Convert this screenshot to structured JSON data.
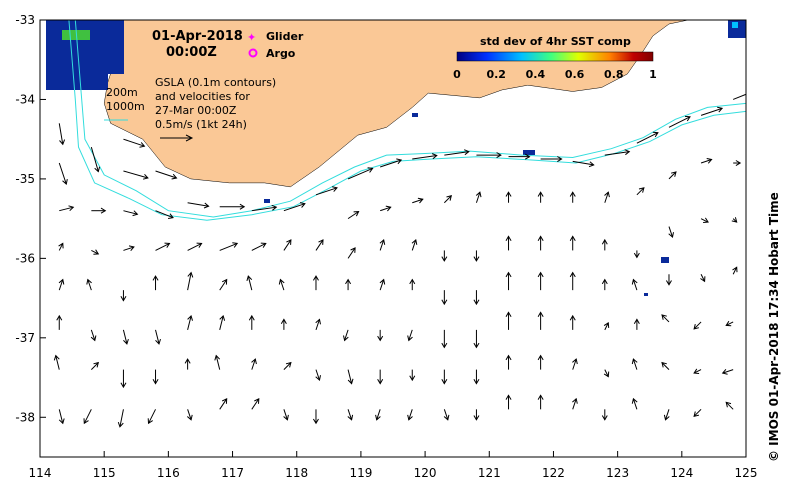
{
  "date_line": "01-Apr-2018",
  "time_line": "00:00Z",
  "legend": {
    "glider_label": "Glider",
    "argo_label": "Argo",
    "glider_color": "#ff00ff",
    "argo_color": "#ff00ff"
  },
  "gsla": {
    "line1": "GSLA (0.1m contours)",
    "line2": "and velocities for",
    "line3": "27-Mar 00:00Z",
    "scale_label": "0.5m/s (1kt 24h)"
  },
  "isobaths": {
    "label_200": "200m",
    "label_1000": "1000m",
    "color": "#33dddd"
  },
  "colorbar": {
    "title": "std dev of 4hr SST comp",
    "ticks": [
      "0",
      "0.2",
      "0.4",
      "0.6",
      "0.8",
      "1"
    ],
    "range": [
      0,
      1
    ],
    "colors": [
      "#000080",
      "#0030ff",
      "#00c0ff",
      "#40ff80",
      "#e0ff00",
      "#ff8000",
      "#c00000",
      "#800000"
    ]
  },
  "credit": "© IMOS 01-Apr-2018 17:34 Hobart Time",
  "chart_data": {
    "type": "map",
    "x_ticks": [
      "114",
      "115",
      "116",
      "117",
      "118",
      "119",
      "120",
      "121",
      "122",
      "123",
      "124",
      "125"
    ],
    "y_ticks": [
      "-33",
      "-34",
      "-35",
      "-36",
      "-37",
      "-38"
    ],
    "xlim": [
      114,
      125
    ],
    "ylim": [
      -38.5,
      -33
    ],
    "land_color": "#fac896",
    "sst_patch_color": "#0a2a9a",
    "coastline": [
      [
        114.95,
        -33.0
      ],
      [
        115.05,
        -33.3
      ],
      [
        115.15,
        -33.55
      ],
      [
        115.05,
        -33.8
      ],
      [
        115.0,
        -34.05
      ],
      [
        115.1,
        -34.3
      ],
      [
        115.6,
        -34.5
      ],
      [
        115.95,
        -34.85
      ],
      [
        116.35,
        -35.0
      ],
      [
        116.95,
        -35.05
      ],
      [
        117.5,
        -35.05
      ],
      [
        117.9,
        -35.1
      ],
      [
        118.35,
        -34.85
      ],
      [
        118.95,
        -34.45
      ],
      [
        119.4,
        -34.35
      ],
      [
        119.8,
        -34.1
      ],
      [
        120.05,
        -33.92
      ],
      [
        120.45,
        -33.95
      ],
      [
        120.85,
        -33.98
      ],
      [
        121.2,
        -33.88
      ],
      [
        121.6,
        -33.82
      ],
      [
        121.95,
        -33.86
      ],
      [
        122.3,
        -33.9
      ],
      [
        122.75,
        -33.85
      ],
      [
        123.15,
        -33.68
      ],
      [
        123.35,
        -33.45
      ],
      [
        123.55,
        -33.2
      ],
      [
        123.8,
        -33.05
      ],
      [
        124.1,
        -33.0
      ]
    ],
    "contour_200m": [
      [
        114.55,
        -33.0
      ],
      [
        114.6,
        -33.5
      ],
      [
        114.65,
        -34.0
      ],
      [
        114.7,
        -34.5
      ],
      [
        115.0,
        -34.95
      ],
      [
        115.5,
        -35.15
      ],
      [
        116.0,
        -35.4
      ],
      [
        116.7,
        -35.48
      ],
      [
        117.3,
        -35.4
      ],
      [
        117.9,
        -35.28
      ],
      [
        118.4,
        -35.05
      ],
      [
        118.9,
        -34.85
      ],
      [
        119.4,
        -34.7
      ],
      [
        120.0,
        -34.68
      ],
      [
        120.7,
        -34.65
      ],
      [
        121.5,
        -34.7
      ],
      [
        122.3,
        -34.73
      ],
      [
        122.9,
        -34.62
      ],
      [
        123.4,
        -34.48
      ],
      [
        123.9,
        -34.25
      ],
      [
        124.4,
        -34.1
      ],
      [
        125.0,
        -34.05
      ]
    ],
    "contour_1000m": [
      [
        114.45,
        -33.0
      ],
      [
        114.5,
        -33.5
      ],
      [
        114.55,
        -34.0
      ],
      [
        114.6,
        -34.6
      ],
      [
        114.85,
        -35.05
      ],
      [
        115.4,
        -35.25
      ],
      [
        115.9,
        -35.45
      ],
      [
        116.6,
        -35.52
      ],
      [
        117.3,
        -35.45
      ],
      [
        117.95,
        -35.35
      ],
      [
        118.5,
        -35.12
      ],
      [
        119.0,
        -34.9
      ],
      [
        119.5,
        -34.78
      ],
      [
        120.1,
        -34.75
      ],
      [
        120.8,
        -34.72
      ],
      [
        121.6,
        -34.76
      ],
      [
        122.35,
        -34.8
      ],
      [
        122.95,
        -34.68
      ],
      [
        123.5,
        -34.53
      ],
      [
        124.0,
        -34.32
      ],
      [
        124.5,
        -34.2
      ],
      [
        125.0,
        -34.15
      ]
    ],
    "velocity_vectors": [
      {
        "lon": 114.3,
        "lat": -34.3,
        "u": 0.05,
        "v": -0.3
      },
      {
        "lon": 114.3,
        "lat": -34.8,
        "u": 0.1,
        "v": -0.3
      },
      {
        "lon": 114.3,
        "lat": -35.4,
        "u": 0.2,
        "v": 0.05
      },
      {
        "lon": 114.3,
        "lat": -35.9,
        "u": 0.05,
        "v": 0.1
      },
      {
        "lon": 114.3,
        "lat": -36.4,
        "u": 0.05,
        "v": 0.15
      },
      {
        "lon": 114.3,
        "lat": -36.9,
        "u": 0.0,
        "v": 0.2
      },
      {
        "lon": 114.3,
        "lat": -37.4,
        "u": -0.05,
        "v": 0.2
      },
      {
        "lon": 114.3,
        "lat": -37.9,
        "u": 0.05,
        "v": -0.2
      },
      {
        "lon": 114.8,
        "lat": -34.6,
        "u": 0.1,
        "v": -0.35
      },
      {
        "lon": 114.8,
        "lat": -35.4,
        "u": 0.2,
        "v": 0.0
      },
      {
        "lon": 114.8,
        "lat": -35.9,
        "u": 0.1,
        "v": -0.05
      },
      {
        "lon": 114.8,
        "lat": -36.4,
        "u": -0.05,
        "v": 0.15
      },
      {
        "lon": 114.8,
        "lat": -36.9,
        "u": 0.05,
        "v": -0.15
      },
      {
        "lon": 114.8,
        "lat": -37.4,
        "u": 0.1,
        "v": 0.1
      },
      {
        "lon": 114.8,
        "lat": -37.9,
        "u": -0.1,
        "v": -0.2
      },
      {
        "lon": 115.3,
        "lat": -34.5,
        "u": 0.3,
        "v": -0.1
      },
      {
        "lon": 115.3,
        "lat": -34.9,
        "u": 0.35,
        "v": -0.1
      },
      {
        "lon": 115.3,
        "lat": -35.4,
        "u": 0.2,
        "v": -0.05
      },
      {
        "lon": 115.3,
        "lat": -35.9,
        "u": 0.15,
        "v": 0.05
      },
      {
        "lon": 115.3,
        "lat": -36.4,
        "u": 0.0,
        "v": -0.15
      },
      {
        "lon": 115.3,
        "lat": -36.9,
        "u": 0.05,
        "v": -0.2
      },
      {
        "lon": 115.3,
        "lat": -37.4,
        "u": 0.0,
        "v": -0.25
      },
      {
        "lon": 115.3,
        "lat": -37.9,
        "u": -0.05,
        "v": -0.25
      },
      {
        "lon": 115.8,
        "lat": -34.9,
        "u": 0.3,
        "v": -0.1
      },
      {
        "lon": 115.8,
        "lat": -35.4,
        "u": 0.25,
        "v": -0.1
      },
      {
        "lon": 115.8,
        "lat": -35.9,
        "u": 0.2,
        "v": 0.1
      },
      {
        "lon": 115.8,
        "lat": -36.4,
        "u": 0.0,
        "v": 0.2
      },
      {
        "lon": 115.8,
        "lat": -36.9,
        "u": 0.05,
        "v": -0.2
      },
      {
        "lon": 115.8,
        "lat": -37.4,
        "u": 0.0,
        "v": -0.2
      },
      {
        "lon": 115.8,
        "lat": -37.9,
        "u": -0.1,
        "v": -0.2
      },
      {
        "lon": 116.3,
        "lat": -35.3,
        "u": 0.3,
        "v": -0.05
      },
      {
        "lon": 116.3,
        "lat": -35.9,
        "u": 0.2,
        "v": 0.1
      },
      {
        "lon": 116.3,
        "lat": -36.4,
        "u": 0.05,
        "v": 0.25
      },
      {
        "lon": 116.3,
        "lat": -36.9,
        "u": 0.05,
        "v": 0.2
      },
      {
        "lon": 116.3,
        "lat": -37.4,
        "u": 0.0,
        "v": 0.15
      },
      {
        "lon": 116.3,
        "lat": -37.9,
        "u": 0.05,
        "v": -0.15
      },
      {
        "lon": 116.8,
        "lat": -35.35,
        "u": 0.35,
        "v": 0.0
      },
      {
        "lon": 116.8,
        "lat": -35.9,
        "u": 0.25,
        "v": 0.1
      },
      {
        "lon": 116.8,
        "lat": -36.4,
        "u": 0.1,
        "v": 0.15
      },
      {
        "lon": 116.8,
        "lat": -36.9,
        "u": 0.05,
        "v": 0.2
      },
      {
        "lon": 116.8,
        "lat": -37.4,
        "u": -0.05,
        "v": 0.2
      },
      {
        "lon": 116.8,
        "lat": -37.9,
        "u": 0.1,
        "v": 0.15
      },
      {
        "lon": 117.3,
        "lat": -35.4,
        "u": 0.35,
        "v": 0.05
      },
      {
        "lon": 117.3,
        "lat": -35.9,
        "u": 0.2,
        "v": 0.1
      },
      {
        "lon": 117.3,
        "lat": -36.4,
        "u": -0.05,
        "v": 0.2
      },
      {
        "lon": 117.3,
        "lat": -36.9,
        "u": 0.0,
        "v": 0.2
      },
      {
        "lon": 117.3,
        "lat": -37.4,
        "u": 0.05,
        "v": 0.15
      },
      {
        "lon": 117.3,
        "lat": -37.9,
        "u": 0.1,
        "v": 0.15
      },
      {
        "lon": 117.8,
        "lat": -35.4,
        "u": 0.3,
        "v": 0.1
      },
      {
        "lon": 117.8,
        "lat": -35.9,
        "u": 0.1,
        "v": 0.15
      },
      {
        "lon": 117.8,
        "lat": -36.4,
        "u": -0.05,
        "v": 0.15
      },
      {
        "lon": 117.8,
        "lat": -36.9,
        "u": 0.0,
        "v": 0.15
      },
      {
        "lon": 117.8,
        "lat": -37.4,
        "u": 0.1,
        "v": 0.1
      },
      {
        "lon": 117.8,
        "lat": -37.9,
        "u": 0.05,
        "v": -0.15
      },
      {
        "lon": 118.3,
        "lat": -35.2,
        "u": 0.3,
        "v": 0.1
      },
      {
        "lon": 118.3,
        "lat": -35.9,
        "u": 0.1,
        "v": 0.15
      },
      {
        "lon": 118.3,
        "lat": -36.4,
        "u": 0.0,
        "v": 0.2
      },
      {
        "lon": 118.3,
        "lat": -36.9,
        "u": 0.05,
        "v": 0.15
      },
      {
        "lon": 118.3,
        "lat": -37.4,
        "u": 0.05,
        "v": -0.15
      },
      {
        "lon": 118.3,
        "lat": -37.9,
        "u": 0.0,
        "v": -0.2
      },
      {
        "lon": 118.8,
        "lat": -35.0,
        "u": 0.35,
        "v": 0.15
      },
      {
        "lon": 118.8,
        "lat": -35.5,
        "u": 0.15,
        "v": 0.1
      },
      {
        "lon": 118.8,
        "lat": -36.0,
        "u": 0.1,
        "v": 0.15
      },
      {
        "lon": 118.8,
        "lat": -36.4,
        "u": 0.0,
        "v": 0.15
      },
      {
        "lon": 118.8,
        "lat": -36.9,
        "u": -0.05,
        "v": -0.15
      },
      {
        "lon": 118.8,
        "lat": -37.4,
        "u": 0.05,
        "v": -0.2
      },
      {
        "lon": 118.8,
        "lat": -37.9,
        "u": 0.05,
        "v": -0.15
      },
      {
        "lon": 119.3,
        "lat": -34.85,
        "u": 0.3,
        "v": 0.1
      },
      {
        "lon": 119.3,
        "lat": -35.4,
        "u": 0.15,
        "v": 0.05
      },
      {
        "lon": 119.3,
        "lat": -35.9,
        "u": 0.05,
        "v": 0.15
      },
      {
        "lon": 119.3,
        "lat": -36.4,
        "u": 0.05,
        "v": 0.15
      },
      {
        "lon": 119.3,
        "lat": -36.9,
        "u": 0.0,
        "v": -0.15
      },
      {
        "lon": 119.3,
        "lat": -37.4,
        "u": 0.0,
        "v": -0.2
      },
      {
        "lon": 119.3,
        "lat": -37.9,
        "u": -0.05,
        "v": -0.15
      },
      {
        "lon": 119.8,
        "lat": -34.75,
        "u": 0.35,
        "v": 0.05
      },
      {
        "lon": 119.8,
        "lat": -35.3,
        "u": 0.15,
        "v": 0.05
      },
      {
        "lon": 119.8,
        "lat": -35.9,
        "u": 0.05,
        "v": 0.15
      },
      {
        "lon": 119.8,
        "lat": -36.4,
        "u": 0.0,
        "v": 0.15
      },
      {
        "lon": 119.8,
        "lat": -36.9,
        "u": -0.05,
        "v": -0.15
      },
      {
        "lon": 119.8,
        "lat": -37.4,
        "u": 0.0,
        "v": -0.15
      },
      {
        "lon": 119.8,
        "lat": -37.9,
        "u": -0.05,
        "v": -0.15
      },
      {
        "lon": 120.3,
        "lat": -34.7,
        "u": 0.35,
        "v": 0.05
      },
      {
        "lon": 120.3,
        "lat": -35.3,
        "u": 0.1,
        "v": 0.1
      },
      {
        "lon": 120.3,
        "lat": -35.9,
        "u": 0.0,
        "v": -0.15
      },
      {
        "lon": 120.3,
        "lat": -36.4,
        "u": 0.0,
        "v": -0.2
      },
      {
        "lon": 120.3,
        "lat": -36.9,
        "u": 0.0,
        "v": -0.25
      },
      {
        "lon": 120.3,
        "lat": -37.4,
        "u": 0.0,
        "v": -0.2
      },
      {
        "lon": 120.3,
        "lat": -37.9,
        "u": 0.05,
        "v": -0.15
      },
      {
        "lon": 120.8,
        "lat": -34.7,
        "u": 0.35,
        "v": 0.0
      },
      {
        "lon": 120.8,
        "lat": -35.3,
        "u": 0.05,
        "v": 0.15
      },
      {
        "lon": 120.8,
        "lat": -35.9,
        "u": 0.0,
        "v": -0.15
      },
      {
        "lon": 120.8,
        "lat": -36.4,
        "u": 0.0,
        "v": -0.2
      },
      {
        "lon": 120.8,
        "lat": -36.9,
        "u": 0.0,
        "v": -0.25
      },
      {
        "lon": 120.8,
        "lat": -37.4,
        "u": 0.0,
        "v": -0.2
      },
      {
        "lon": 120.8,
        "lat": -37.9,
        "u": 0.0,
        "v": -0.15
      },
      {
        "lon": 121.3,
        "lat": -34.72,
        "u": 0.3,
        "v": 0.0
      },
      {
        "lon": 121.3,
        "lat": -35.3,
        "u": 0.0,
        "v": 0.15
      },
      {
        "lon": 121.3,
        "lat": -35.9,
        "u": 0.0,
        "v": 0.2
      },
      {
        "lon": 121.3,
        "lat": -36.4,
        "u": 0.0,
        "v": 0.25
      },
      {
        "lon": 121.3,
        "lat": -36.9,
        "u": 0.0,
        "v": 0.25
      },
      {
        "lon": 121.3,
        "lat": -37.4,
        "u": 0.0,
        "v": 0.2
      },
      {
        "lon": 121.3,
        "lat": -37.9,
        "u": 0.0,
        "v": 0.2
      },
      {
        "lon": 121.8,
        "lat": -34.75,
        "u": 0.3,
        "v": 0.0
      },
      {
        "lon": 121.8,
        "lat": -35.3,
        "u": 0.0,
        "v": 0.15
      },
      {
        "lon": 121.8,
        "lat": -35.9,
        "u": 0.0,
        "v": 0.2
      },
      {
        "lon": 121.8,
        "lat": -36.4,
        "u": 0.0,
        "v": 0.25
      },
      {
        "lon": 121.8,
        "lat": -36.9,
        "u": 0.0,
        "v": 0.25
      },
      {
        "lon": 121.8,
        "lat": -37.4,
        "u": 0.0,
        "v": 0.2
      },
      {
        "lon": 121.8,
        "lat": -37.9,
        "u": 0.0,
        "v": 0.2
      },
      {
        "lon": 122.3,
        "lat": -34.78,
        "u": 0.3,
        "v": -0.05
      },
      {
        "lon": 122.3,
        "lat": -35.3,
        "u": 0.0,
        "v": 0.15
      },
      {
        "lon": 122.3,
        "lat": -35.9,
        "u": 0.0,
        "v": 0.2
      },
      {
        "lon": 122.3,
        "lat": -36.4,
        "u": 0.0,
        "v": 0.25
      },
      {
        "lon": 122.3,
        "lat": -36.9,
        "u": 0.0,
        "v": 0.2
      },
      {
        "lon": 122.3,
        "lat": -37.4,
        "u": 0.05,
        "v": 0.15
      },
      {
        "lon": 122.3,
        "lat": -37.9,
        "u": 0.05,
        "v": 0.15
      },
      {
        "lon": 122.8,
        "lat": -34.7,
        "u": 0.35,
        "v": 0.05
      },
      {
        "lon": 122.8,
        "lat": -35.3,
        "u": 0.05,
        "v": 0.15
      },
      {
        "lon": 122.8,
        "lat": -35.9,
        "u": 0.0,
        "v": 0.15
      },
      {
        "lon": 122.8,
        "lat": -36.4,
        "u": 0.0,
        "v": 0.15
      },
      {
        "lon": 122.8,
        "lat": -36.9,
        "u": 0.05,
        "v": 0.1
      },
      {
        "lon": 122.8,
        "lat": -37.4,
        "u": 0.05,
        "v": -0.1
      },
      {
        "lon": 122.8,
        "lat": -37.9,
        "u": 0.0,
        "v": -0.15
      },
      {
        "lon": 123.3,
        "lat": -34.55,
        "u": 0.3,
        "v": 0.15
      },
      {
        "lon": 123.3,
        "lat": -35.2,
        "u": 0.1,
        "v": 0.1
      },
      {
        "lon": 123.3,
        "lat": -35.9,
        "u": 0.0,
        "v": -0.1
      },
      {
        "lon": 123.3,
        "lat": -36.4,
        "u": -0.05,
        "v": 0.15
      },
      {
        "lon": 123.3,
        "lat": -36.9,
        "u": 0.0,
        "v": 0.15
      },
      {
        "lon": 123.3,
        "lat": -37.4,
        "u": -0.05,
        "v": 0.15
      },
      {
        "lon": 123.3,
        "lat": -37.9,
        "u": -0.05,
        "v": 0.15
      },
      {
        "lon": 123.8,
        "lat": -34.35,
        "u": 0.3,
        "v": 0.15
      },
      {
        "lon": 123.8,
        "lat": -35.0,
        "u": 0.1,
        "v": 0.1
      },
      {
        "lon": 123.8,
        "lat": -35.6,
        "u": 0.05,
        "v": -0.15
      },
      {
        "lon": 123.8,
        "lat": -36.2,
        "u": 0.0,
        "v": -0.15
      },
      {
        "lon": 123.8,
        "lat": -36.8,
        "u": -0.1,
        "v": 0.1
      },
      {
        "lon": 123.8,
        "lat": -37.4,
        "u": -0.1,
        "v": 0.1
      },
      {
        "lon": 123.8,
        "lat": -37.9,
        "u": -0.05,
        "v": -0.15
      },
      {
        "lon": 124.3,
        "lat": -34.2,
        "u": 0.3,
        "v": 0.1
      },
      {
        "lon": 124.3,
        "lat": -34.8,
        "u": 0.15,
        "v": 0.05
      },
      {
        "lon": 124.3,
        "lat": -35.5,
        "u": 0.1,
        "v": -0.05
      },
      {
        "lon": 124.3,
        "lat": -36.2,
        "u": 0.05,
        "v": -0.1
      },
      {
        "lon": 124.3,
        "lat": -36.8,
        "u": -0.1,
        "v": -0.1
      },
      {
        "lon": 124.3,
        "lat": -37.4,
        "u": -0.1,
        "v": -0.05
      },
      {
        "lon": 124.3,
        "lat": -37.9,
        "u": -0.1,
        "v": -0.1
      },
      {
        "lon": 124.8,
        "lat": -34.0,
        "u": 0.25,
        "v": 0.1
      },
      {
        "lon": 124.8,
        "lat": -34.8,
        "u": 0.1,
        "v": 0.0
      },
      {
        "lon": 124.8,
        "lat": -35.5,
        "u": 0.05,
        "v": -0.05
      },
      {
        "lon": 124.8,
        "lat": -36.2,
        "u": 0.05,
        "v": 0.1
      },
      {
        "lon": 124.8,
        "lat": -36.8,
        "u": -0.1,
        "v": -0.05
      },
      {
        "lon": 124.8,
        "lat": -37.4,
        "u": -0.15,
        "v": -0.05
      },
      {
        "lon": 124.8,
        "lat": -37.9,
        "u": -0.1,
        "v": 0.1
      }
    ]
  }
}
